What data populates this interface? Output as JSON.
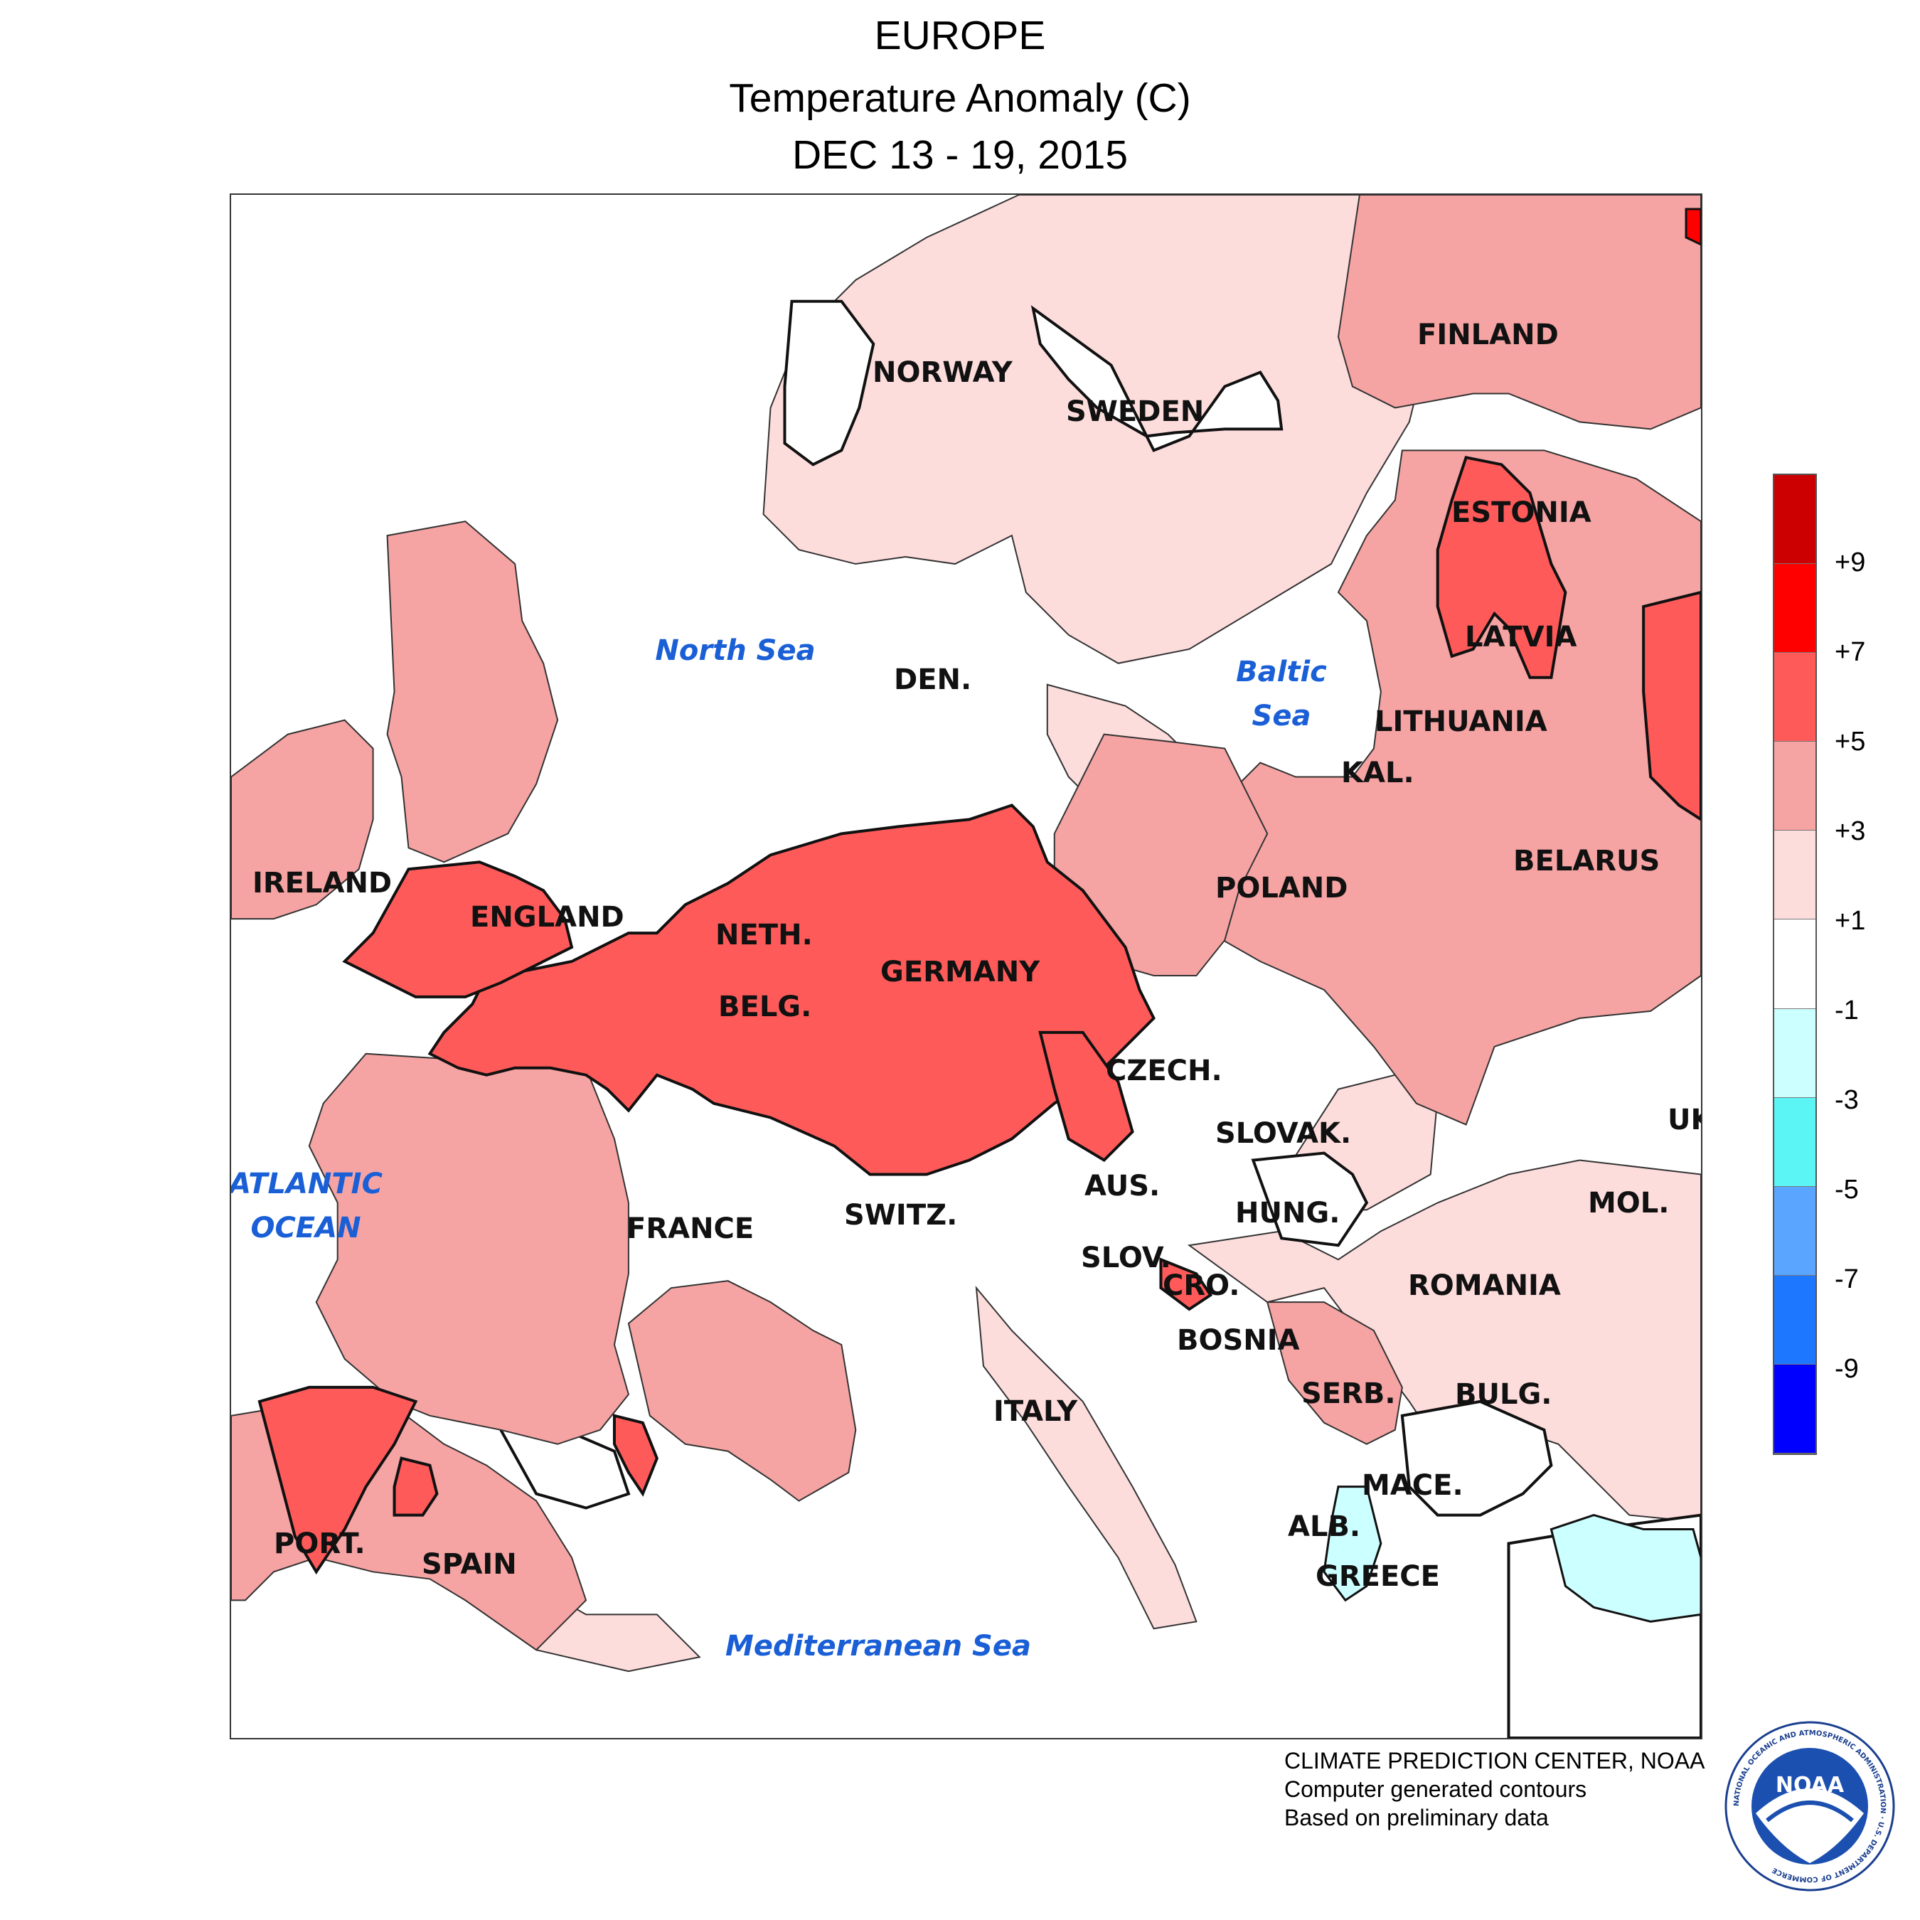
{
  "header": {
    "title": "EUROPE",
    "subtitle": "Temperature Anomaly (C)",
    "date_range": "DEC 13 - 19, 2015"
  },
  "map": {
    "country_labels": [
      "NORWAY",
      "SWEDEN",
      "FINLAND",
      "ESTONIA",
      "LATVIA",
      "LITHUANIA",
      "KAL.",
      "BELARUS",
      "POLAND",
      "DEN.",
      "IRELAND",
      "ENGLAND",
      "NETH.",
      "BELG.",
      "GERMANY",
      "CZECH.",
      "SLOVAK.",
      "AUS.",
      "SWITZ.",
      "FRANCE",
      "HUNG.",
      "SLOV.",
      "CRO.",
      "BOSNIA",
      "ROMANIA",
      "MOL.",
      "UK",
      "SERB.",
      "BULG.",
      "MACE.",
      "ALB.",
      "GREECE",
      "ITALY",
      "PORT.",
      "SPAIN"
    ],
    "sea_labels": [
      "North Sea",
      "Baltic Sea",
      "ATLANTIC OCEAN",
      "Mediterranean Sea"
    ]
  },
  "legend": {
    "labels": [
      "+9",
      "+7",
      "+5",
      "+3",
      "+1",
      "-1",
      "-3",
      "-5",
      "-7",
      "-9"
    ],
    "colors": [
      "#cc0000",
      "#ff0000",
      "#ff5a5a",
      "#f5a3a3",
      "#fddcdc",
      "#ffffff",
      "#ccffff",
      "#5cf5f5",
      "#5aa5ff",
      "#1e78ff",
      "#0000ff"
    ]
  },
  "credits": {
    "line1": "CLIMATE PREDICTION CENTER, NOAA",
    "line2": "Computer generated contours",
    "line3": "Based on preliminary data"
  },
  "logo": {
    "text": "NOAA",
    "ring_text": "NATIONAL OCEANIC AND ATMOSPHERIC ADMINISTRATION · U.S. DEPARTMENT OF COMMERCE"
  }
}
